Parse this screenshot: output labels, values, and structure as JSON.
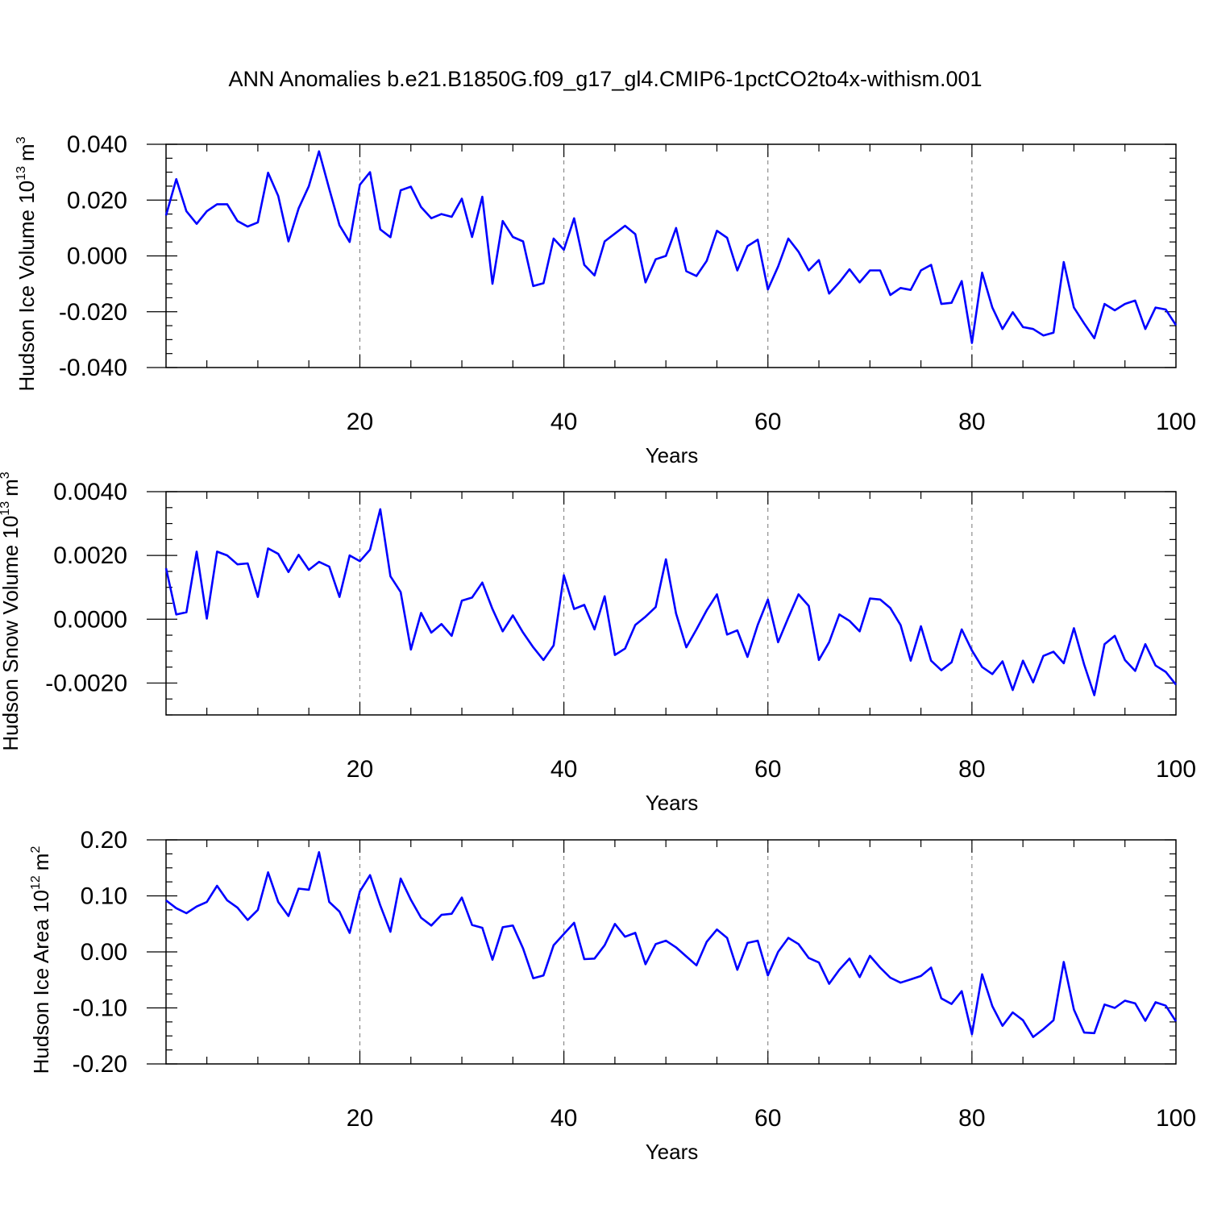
{
  "chart_data": [
    {
      "type": "line",
      "title": "ANN Anomalies b.e21.B1850G.f09_g17_gl4.CMIP6-1pctCO2to4x-withism.001",
      "ylabel": "Hudson Ice Volume 10",
      "ylabel_exp": "13",
      "ylabel_unit": "m",
      "ylabel_unit_exp": "3",
      "xlabel": "Years",
      "xlim": [
        1,
        100
      ],
      "ylim": [
        -0.04,
        0.04
      ],
      "xticks": [
        20,
        40,
        60,
        80,
        100
      ],
      "xtick_labels": [
        "20",
        "40",
        "60",
        "80",
        "100"
      ],
      "yticks": [
        -0.04,
        -0.02,
        0.0,
        0.02,
        0.04
      ],
      "ytick_labels": [
        "-0.040",
        "-0.020",
        "0.000",
        "0.020",
        "0.040"
      ],
      "grid": "vertical dashed at major x ticks",
      "color": "#0000ff",
      "series": [
        {
          "values": [
            0.0145,
            0.0275,
            0.016,
            0.0115,
            0.016,
            0.0185,
            0.0185,
            0.0125,
            0.0105,
            0.012,
            0.0298,
            0.0215,
            0.0052,
            0.017,
            0.025,
            0.0375,
            0.024,
            0.011,
            0.005,
            0.0255,
            0.03,
            0.0095,
            0.0067,
            0.0235,
            0.0248,
            0.0175,
            0.0135,
            0.015,
            0.014,
            0.0205,
            0.0068,
            0.0212,
            -0.01,
            0.0125,
            0.0068,
            0.0052,
            -0.0108,
            -0.0098,
            0.0062,
            0.0022,
            0.0135,
            -0.0032,
            -0.007,
            0.0052,
            0.008,
            0.0108,
            0.0078,
            -0.0095,
            -0.0012,
            0.0,
            0.01,
            -0.0055,
            -0.0072,
            -0.0018,
            0.009,
            0.0065,
            -0.0052,
            0.0035,
            0.0058,
            -0.012,
            -0.0038,
            0.0062,
            0.0015,
            -0.0052,
            -0.0015,
            -0.0135,
            -0.0095,
            -0.0048,
            -0.0095,
            -0.0052,
            -0.0052,
            -0.014,
            -0.0115,
            -0.0122,
            -0.0052,
            -0.0032,
            -0.0172,
            -0.0168,
            -0.009,
            -0.0312,
            -0.006,
            -0.0185,
            -0.0262,
            -0.0202,
            -0.0255,
            -0.0262,
            -0.0285,
            -0.0275,
            -0.0022,
            -0.0185,
            -0.0242,
            -0.0295,
            -0.0172,
            -0.0195,
            -0.0172,
            -0.016,
            -0.0262,
            -0.0185,
            -0.0192,
            -0.0248
          ]
        }
      ]
    },
    {
      "type": "line",
      "ylabel": "Hudson Snow Volume 10",
      "ylabel_exp": "13",
      "ylabel_unit": "m",
      "ylabel_unit_exp": "3",
      "xlabel": "Years",
      "xlim": [
        1,
        100
      ],
      "ylim": [
        -0.003,
        0.004
      ],
      "xticks": [
        20,
        40,
        60,
        80,
        100
      ],
      "xtick_labels": [
        "20",
        "40",
        "60",
        "80",
        "100"
      ],
      "yticks": [
        -0.002,
        0.0,
        0.002,
        0.004
      ],
      "ytick_labels": [
        "-0.0020",
        "0.0000",
        "0.0020",
        "0.0040"
      ],
      "grid": "vertical dashed at major x ticks",
      "color": "#0000ff",
      "series": [
        {
          "values": [
            0.0016,
            0.00015,
            0.00022,
            0.00212,
            2e-05,
            0.00212,
            0.002,
            0.00172,
            0.00175,
            0.0007,
            0.00222,
            0.00205,
            0.00148,
            0.00202,
            0.00155,
            0.0018,
            0.00165,
            0.0007,
            0.002,
            0.00182,
            0.00218,
            0.00345,
            0.00135,
            0.00085,
            -0.00095,
            0.0002,
            -0.00042,
            -0.00015,
            -0.00052,
            0.00058,
            0.00068,
            0.00115,
            0.00032,
            -0.00038,
            0.00012,
            -0.00042,
            -0.00088,
            -0.00128,
            -0.00082,
            0.00138,
            0.00032,
            0.00045,
            -0.00032,
            0.00072,
            -0.00112,
            -0.00092,
            -0.00018,
            8e-05,
            0.00038,
            0.00188,
            0.00018,
            -0.00088,
            -0.00032,
            0.00028,
            0.00078,
            -0.00048,
            -0.00035,
            -0.00118,
            -0.00018,
            0.00062,
            -0.00072,
            5e-05,
            0.00078,
            0.00042,
            -0.00128,
            -0.00072,
            0.00015,
            -5e-05,
            -0.00038,
            0.00065,
            0.00062,
            0.00035,
            -0.00018,
            -0.0013,
            -0.00022,
            -0.0013,
            -0.0016,
            -0.00135,
            -0.00032,
            -0.00098,
            -0.0015,
            -0.00172,
            -0.00132,
            -0.00222,
            -0.0013,
            -0.00198,
            -0.00115,
            -0.00102,
            -0.00138,
            -0.00028,
            -0.00142,
            -0.00238,
            -0.00078,
            -0.00052,
            -0.00128,
            -0.00162,
            -0.00078,
            -0.00145,
            -0.00165,
            -0.00205
          ]
        }
      ]
    },
    {
      "type": "line",
      "ylabel": "Hudson Ice Area 10",
      "ylabel_exp": "12",
      "ylabel_unit": "m",
      "ylabel_unit_exp": "2",
      "xlabel": "Years",
      "xlim": [
        1,
        100
      ],
      "ylim": [
        -0.2,
        0.2
      ],
      "xticks": [
        20,
        40,
        60,
        80,
        100
      ],
      "xtick_labels": [
        "20",
        "40",
        "60",
        "80",
        "100"
      ],
      "yticks": [
        -0.2,
        -0.1,
        0.0,
        0.1,
        0.2
      ],
      "ytick_labels": [
        "-0.20",
        "-0.10",
        "0.00",
        "0.10",
        "0.20"
      ],
      "grid": "vertical dashed at major x ticks",
      "color": "#0000ff",
      "series": [
        {
          "values": [
            0.092,
            0.078,
            0.069,
            0.081,
            0.089,
            0.118,
            0.092,
            0.079,
            0.057,
            0.075,
            0.142,
            0.089,
            0.064,
            0.113,
            0.111,
            0.178,
            0.089,
            0.072,
            0.034,
            0.108,
            0.137,
            0.083,
            0.036,
            0.131,
            0.093,
            0.061,
            0.047,
            0.066,
            0.068,
            0.097,
            0.048,
            0.043,
            -0.014,
            0.044,
            0.047,
            0.006,
            -0.047,
            -0.042,
            0.012,
            0.032,
            0.052,
            -0.013,
            -0.012,
            0.012,
            0.05,
            0.027,
            0.034,
            -0.022,
            0.014,
            0.02,
            0.008,
            -0.008,
            -0.024,
            0.018,
            0.04,
            0.025,
            -0.032,
            0.016,
            0.02,
            -0.042,
            0.0,
            0.025,
            0.014,
            -0.011,
            -0.019,
            -0.057,
            -0.032,
            -0.012,
            -0.045,
            -0.007,
            -0.028,
            -0.046,
            -0.055,
            -0.049,
            -0.043,
            -0.028,
            -0.083,
            -0.093,
            -0.07,
            -0.147,
            -0.04,
            -0.097,
            -0.132,
            -0.108,
            -0.122,
            -0.152,
            -0.138,
            -0.122,
            -0.018,
            -0.103,
            -0.144,
            -0.145,
            -0.094,
            -0.1,
            -0.087,
            -0.092,
            -0.123,
            -0.09,
            -0.096,
            -0.124
          ]
        }
      ]
    }
  ]
}
